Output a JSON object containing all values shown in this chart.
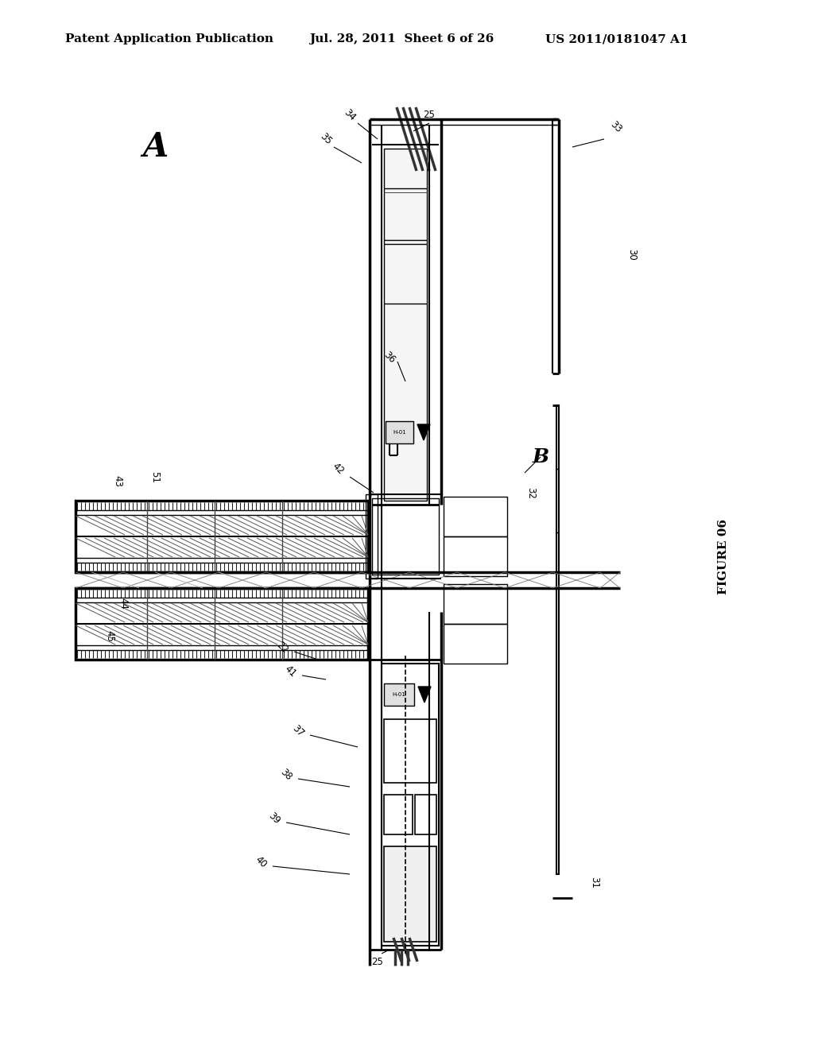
{
  "title_left": "Patent Application Publication",
  "title_mid": "Jul. 28, 2011  Sheet 6 of 26",
  "title_right": "US 2011/0181047 A1",
  "figure_label": "FIGURE 06",
  "bg_color": "#ffffff"
}
